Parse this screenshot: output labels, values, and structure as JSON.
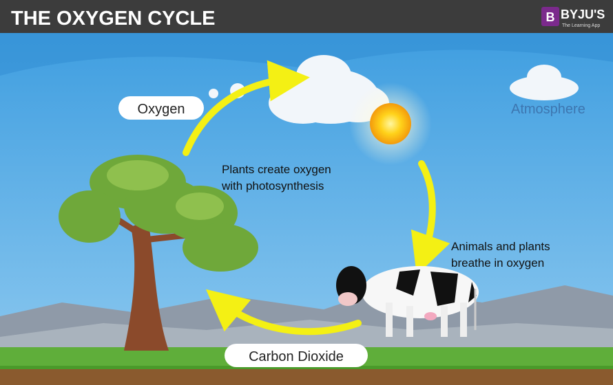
{
  "header": {
    "title": "THE OXYGEN CYCLE",
    "logo_letter": "B",
    "brand": "BYJU'S",
    "tagline": "The Learning App"
  },
  "labels": {
    "oxygen": "Oxygen",
    "atmosphere": "Atmosphere",
    "photosynthesis": [
      "Plants create oxygen",
      "with photosynthesis"
    ],
    "breathe": [
      "Animals and plants",
      "breathe in oxygen"
    ],
    "carbon_dioxide": "Carbon Dioxide"
  }
}
